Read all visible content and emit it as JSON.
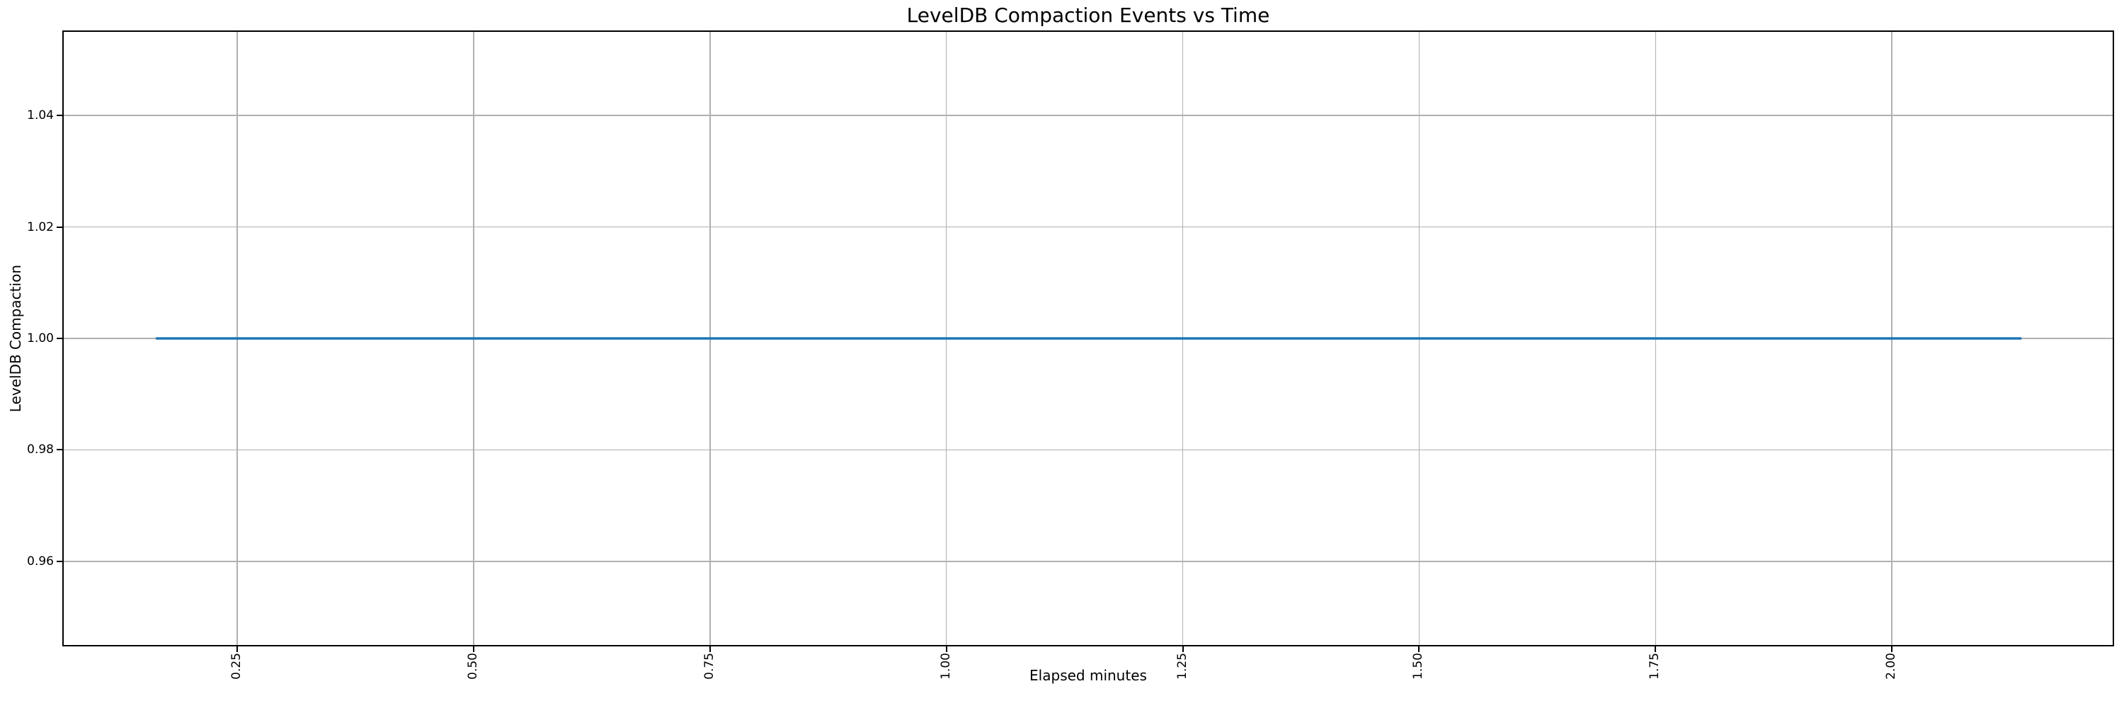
{
  "chart_data": {
    "type": "line",
    "title": "LevelDB Compaction Events vs Time",
    "xlabel": "Elapsed minutes",
    "ylabel": "LevelDB Compaction",
    "series": [
      {
        "name": "LevelDB Compaction",
        "color": "#1f77b4",
        "x": [
          0.165,
          2.136
        ],
        "y": [
          1.0,
          1.0
        ]
      }
    ],
    "xlim": [
      0.0665,
      2.2335
    ],
    "ylim": [
      0.945,
      1.055
    ],
    "xticks": [
      0.25,
      0.5,
      0.75,
      1.0,
      1.25,
      1.5,
      1.75,
      2.0
    ],
    "xtick_labels": [
      "0.25",
      "0.50",
      "0.75",
      "1.00",
      "1.25",
      "1.50",
      "1.75",
      "2.00"
    ],
    "xtick_label_rotation": 90,
    "yticks": [
      0.96,
      0.98,
      1.0,
      1.02,
      1.04
    ],
    "ytick_labels": [
      "0.96",
      "0.98",
      "1.00",
      "1.02",
      "1.04"
    ],
    "grid": true,
    "grid_color": "#b0b0b0",
    "spine_color": "#000000",
    "background_color": "#ffffff",
    "legend": null
  }
}
